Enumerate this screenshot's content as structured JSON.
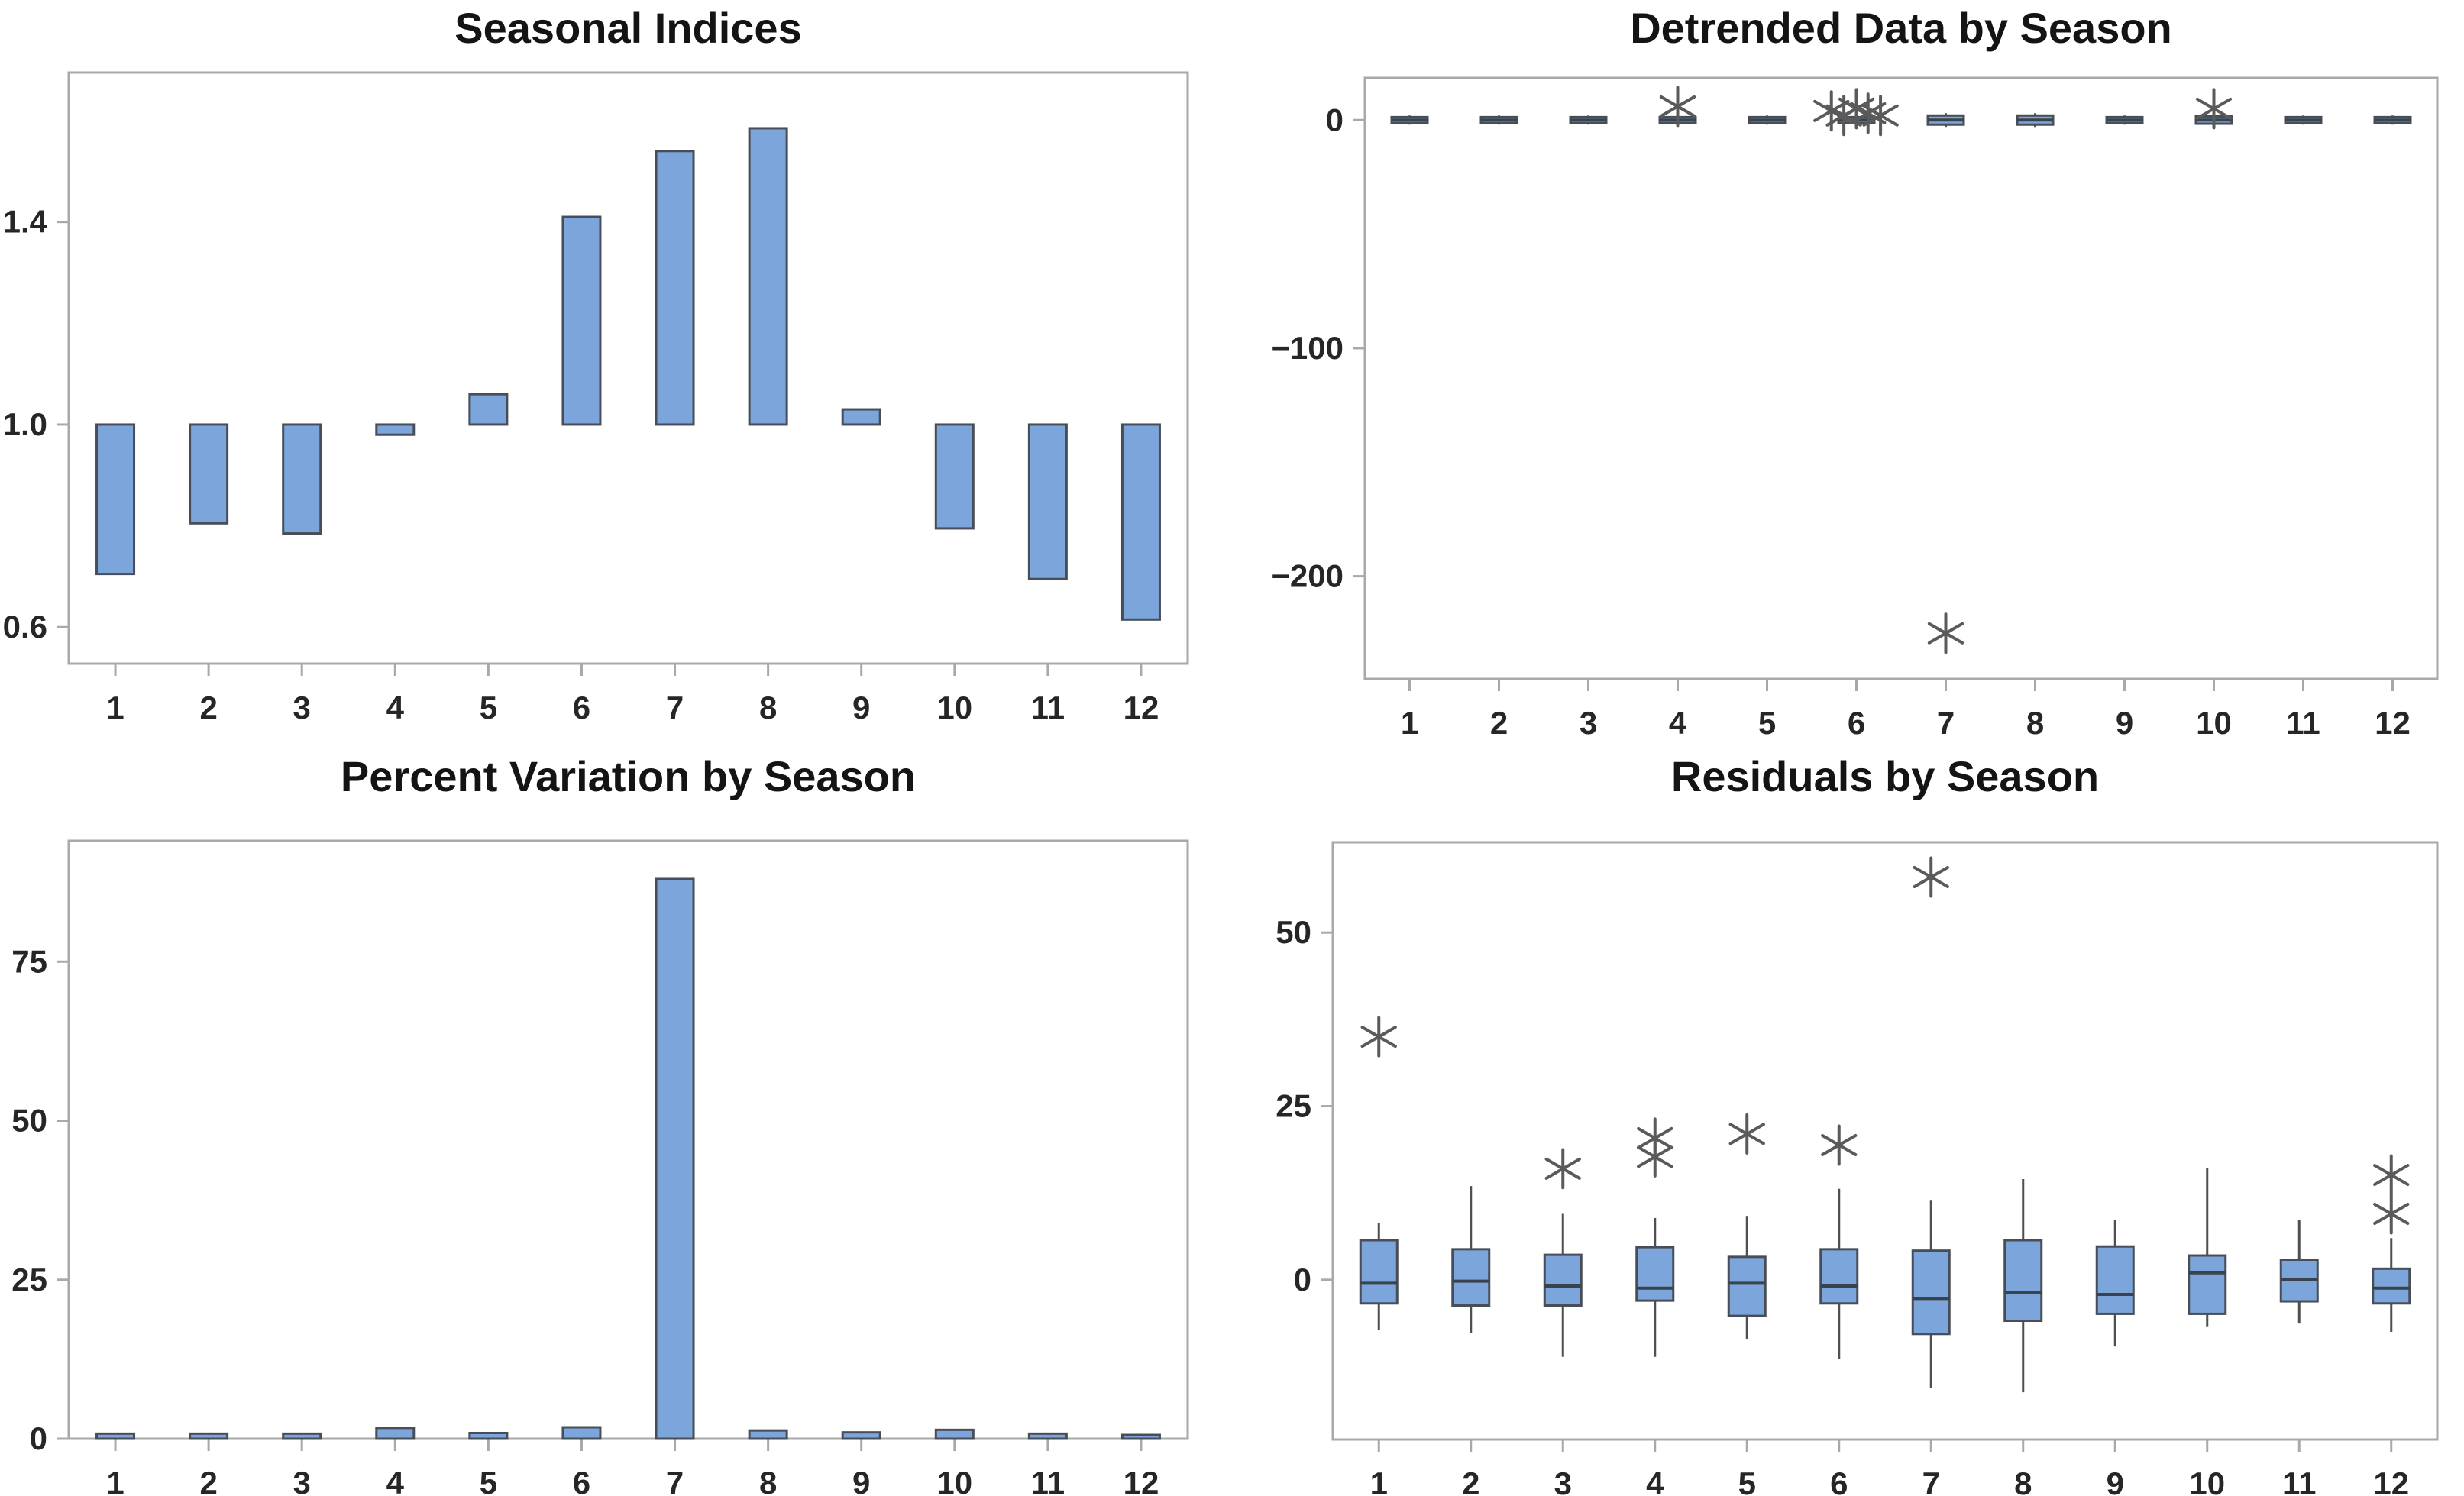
{
  "page": {
    "background": "#ffffff"
  },
  "style": {
    "box_fill": "#7CA6DB",
    "box_border": "#474E57",
    "whisker_color": "#4F4F4F",
    "median_color": "#3A424B",
    "axis_color": "#A9A9A9",
    "tick_label_color": "#262626",
    "title_color": "#141414",
    "outlier_color": "#5A5A5A"
  },
  "chart_data": [
    {
      "id": "seasonal-indices",
      "type": "bar",
      "title": "Seasonal Indices",
      "categories": [
        "1",
        "2",
        "3",
        "4",
        "5",
        "6",
        "7",
        "8",
        "9",
        "10",
        "11",
        "12"
      ],
      "values": [
        0.705,
        0.805,
        0.785,
        0.98,
        1.06,
        1.41,
        1.54,
        1.585,
        1.03,
        0.795,
        0.695,
        0.615
      ],
      "baseline": 1.0,
      "ylim": [
        0.528,
        1.695
      ],
      "yticks": [
        {
          "v": 1.4,
          "label": "1.4"
        },
        {
          "v": 1.0,
          "label": "1.0"
        },
        {
          "v": 0.6,
          "label": "0.6"
        }
      ],
      "xlabel": "",
      "ylabel": "",
      "grid": false,
      "legend": "none"
    },
    {
      "id": "detrended-data",
      "type": "box",
      "title": "Detrended Data by Season",
      "categories": [
        "1",
        "2",
        "3",
        "4",
        "5",
        "6",
        "7",
        "8",
        "9",
        "10",
        "11",
        "12"
      ],
      "boxes": [
        {
          "lo": -2,
          "q1": -1.3,
          "med": 0,
          "q3": 1.3,
          "hi": 2,
          "outliers": []
        },
        {
          "lo": -2,
          "q1": -1.3,
          "med": 0,
          "q3": 1.3,
          "hi": 2,
          "outliers": []
        },
        {
          "lo": -2,
          "q1": -1.3,
          "med": 0,
          "q3": 1.3,
          "hi": 2,
          "outliers": []
        },
        {
          "lo": -2,
          "q1": -1.3,
          "med": 0,
          "q3": 1.3,
          "hi": 2,
          "outliers": [
            {
              "v": 6,
              "dx": 0
            }
          ]
        },
        {
          "lo": -2,
          "q1": -1.3,
          "med": 0,
          "q3": 1.3,
          "hi": 2,
          "outliers": []
        },
        {
          "lo": -2,
          "q1": -1.3,
          "med": 0,
          "q3": 1.3,
          "hi": 2,
          "outliers": [
            {
              "v": 4,
              "dx": -0.28
            },
            {
              "v": 2,
              "dx": -0.14
            },
            {
              "v": 5,
              "dx": 0
            },
            {
              "v": 3,
              "dx": 0.13
            },
            {
              "v": 2,
              "dx": 0.27
            }
          ]
        },
        {
          "lo": -3,
          "q1": -2,
          "med": 0,
          "q3": 2,
          "hi": 3,
          "outliers": [
            {
              "v": -225,
              "dx": 0
            }
          ]
        },
        {
          "lo": -3,
          "q1": -2,
          "med": 0,
          "q3": 2,
          "hi": 3,
          "outliers": []
        },
        {
          "lo": -2,
          "q1": -1.3,
          "med": 0,
          "q3": 1.3,
          "hi": 2,
          "outliers": []
        },
        {
          "lo": -2.5,
          "q1": -1.6,
          "med": 0,
          "q3": 1.6,
          "hi": 2.5,
          "outliers": [
            {
              "v": 5,
              "dx": 0
            }
          ]
        },
        {
          "lo": -2,
          "q1": -1.3,
          "med": 0,
          "q3": 1.3,
          "hi": 2,
          "outliers": []
        },
        {
          "lo": -2,
          "q1": -1.3,
          "med": 0,
          "q3": 1.3,
          "hi": 2,
          "outliers": []
        }
      ],
      "ylim": [
        -245,
        18.5
      ],
      "yticks": [
        {
          "v": 0,
          "label": "0"
        },
        {
          "v": -100,
          "label": "−100"
        },
        {
          "v": -200,
          "label": "−200"
        }
      ],
      "xlabel": "",
      "ylabel": "",
      "grid": false,
      "legend": "none"
    },
    {
      "id": "percent-variation",
      "type": "bar",
      "title": "Percent Variation by Season",
      "categories": [
        "1",
        "2",
        "3",
        "4",
        "5",
        "6",
        "7",
        "8",
        "9",
        "10",
        "11",
        "12"
      ],
      "values": [
        0.8,
        0.8,
        0.8,
        1.7,
        0.9,
        1.8,
        88,
        1.3,
        1.0,
        1.4,
        0.8,
        0.6
      ],
      "baseline": 0,
      "ylim": [
        0,
        94
      ],
      "yticks": [
        {
          "v": 75,
          "label": "75"
        },
        {
          "v": 50,
          "label": "50"
        },
        {
          "v": 25,
          "label": "25"
        },
        {
          "v": 0,
          "label": "0"
        }
      ],
      "xlabel": "",
      "ylabel": "",
      "grid": false,
      "legend": "none"
    },
    {
      "id": "residuals",
      "type": "box",
      "title": "Residuals by Season",
      "categories": [
        "1",
        "2",
        "3",
        "4",
        "5",
        "6",
        "7",
        "8",
        "9",
        "10",
        "11",
        "12"
      ],
      "boxes": [
        {
          "lo": -7.2,
          "q1": -3.4,
          "med": -0.5,
          "q3": 5.7,
          "hi": 8.2,
          "outliers": [
            {
              "v": 35,
              "dx": 0
            }
          ]
        },
        {
          "lo": -7.6,
          "q1": -3.7,
          "med": -0.2,
          "q3": 4.4,
          "hi": 13.5,
          "outliers": []
        },
        {
          "lo": -11.1,
          "q1": -3.7,
          "med": -0.9,
          "q3": 3.6,
          "hi": 9.5,
          "outliers": [
            {
              "v": 16,
              "dx": 0
            }
          ]
        },
        {
          "lo": -11.1,
          "q1": -3.0,
          "med": -1.2,
          "q3": 4.7,
          "hi": 8.9,
          "outliers": [
            {
              "v": 20.4,
              "dx": 0
            },
            {
              "v": 17.7,
              "dx": 0
            }
          ]
        },
        {
          "lo": -8.6,
          "q1": -5.2,
          "med": -0.5,
          "q3": 3.3,
          "hi": 9.2,
          "outliers": [
            {
              "v": 21,
              "dx": 0
            }
          ]
        },
        {
          "lo": -11.4,
          "q1": -3.4,
          "med": -0.9,
          "q3": 4.4,
          "hi": 13.1,
          "outliers": [
            {
              "v": 19.4,
              "dx": 0
            }
          ]
        },
        {
          "lo": -15.6,
          "q1": -7.8,
          "med": -2.7,
          "q3": 4.2,
          "hi": 11.4,
          "outliers": [
            {
              "v": 58,
              "dx": 0
            }
          ]
        },
        {
          "lo": -16.2,
          "q1": -5.9,
          "med": -1.8,
          "q3": 5.7,
          "hi": 14.5,
          "outliers": []
        },
        {
          "lo": -9.6,
          "q1": -4.9,
          "med": -2.1,
          "q3": 4.8,
          "hi": 8.6,
          "outliers": []
        },
        {
          "lo": -6.8,
          "q1": -4.9,
          "med": 1.0,
          "q3": 3.5,
          "hi": 16.1,
          "outliers": []
        },
        {
          "lo": -6.3,
          "q1": -3.1,
          "med": 0.1,
          "q3": 2.9,
          "hi": 8.6,
          "outliers": []
        },
        {
          "lo": -7.5,
          "q1": -3.4,
          "med": -1.2,
          "q3": 1.6,
          "hi": 6.0,
          "outliers": [
            {
              "v": 15.1,
              "dx": 0
            },
            {
              "v": 9.5,
              "dx": 0
            }
          ]
        }
      ],
      "ylim": [
        -23,
        63
      ],
      "yticks": [
        {
          "v": 50,
          "label": "50"
        },
        {
          "v": 25,
          "label": "25"
        },
        {
          "v": 0,
          "label": "0"
        }
      ],
      "xlabel": "",
      "ylabel": "",
      "grid": false,
      "legend": "none"
    }
  ]
}
